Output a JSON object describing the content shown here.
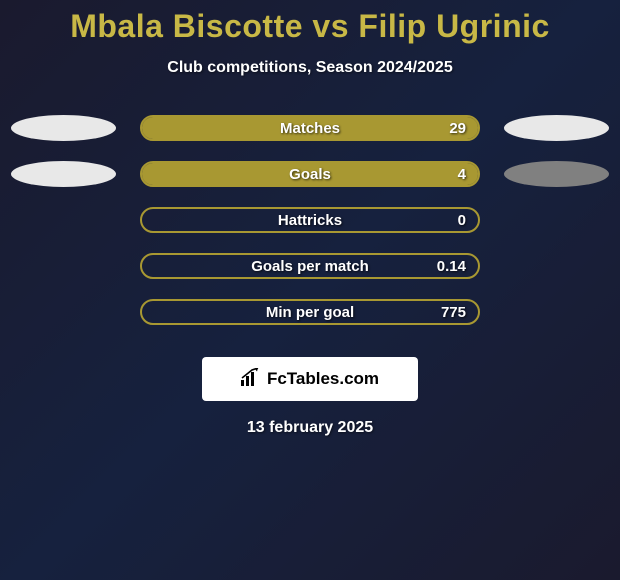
{
  "colors": {
    "accent": "#c8b846",
    "bar_fill": "#a89832",
    "bar_border": "#a89832",
    "ellipse_light": "#e8e8e8",
    "ellipse_dark": "#808080",
    "text_white": "#ffffff",
    "brand_bg": "#ffffff"
  },
  "title": "Mbala Biscotte vs Filip Ugrinic",
  "subtitle": "Club competitions, Season 2024/2025",
  "rows": [
    {
      "label": "Matches",
      "value": "29",
      "fill_pct": 100,
      "left_ellipse": "#e8e8e8",
      "right_ellipse": "#e8e8e8"
    },
    {
      "label": "Goals",
      "value": "4",
      "fill_pct": 100,
      "left_ellipse": "#e8e8e8",
      "right_ellipse": "#808080"
    },
    {
      "label": "Hattricks",
      "value": "0",
      "fill_pct": 0,
      "left_ellipse": null,
      "right_ellipse": null
    },
    {
      "label": "Goals per match",
      "value": "0.14",
      "fill_pct": 0,
      "left_ellipse": null,
      "right_ellipse": null
    },
    {
      "label": "Min per goal",
      "value": "775",
      "fill_pct": 0,
      "left_ellipse": null,
      "right_ellipse": null
    }
  ],
  "brand": "FcTables.com",
  "date": "13 february 2025"
}
